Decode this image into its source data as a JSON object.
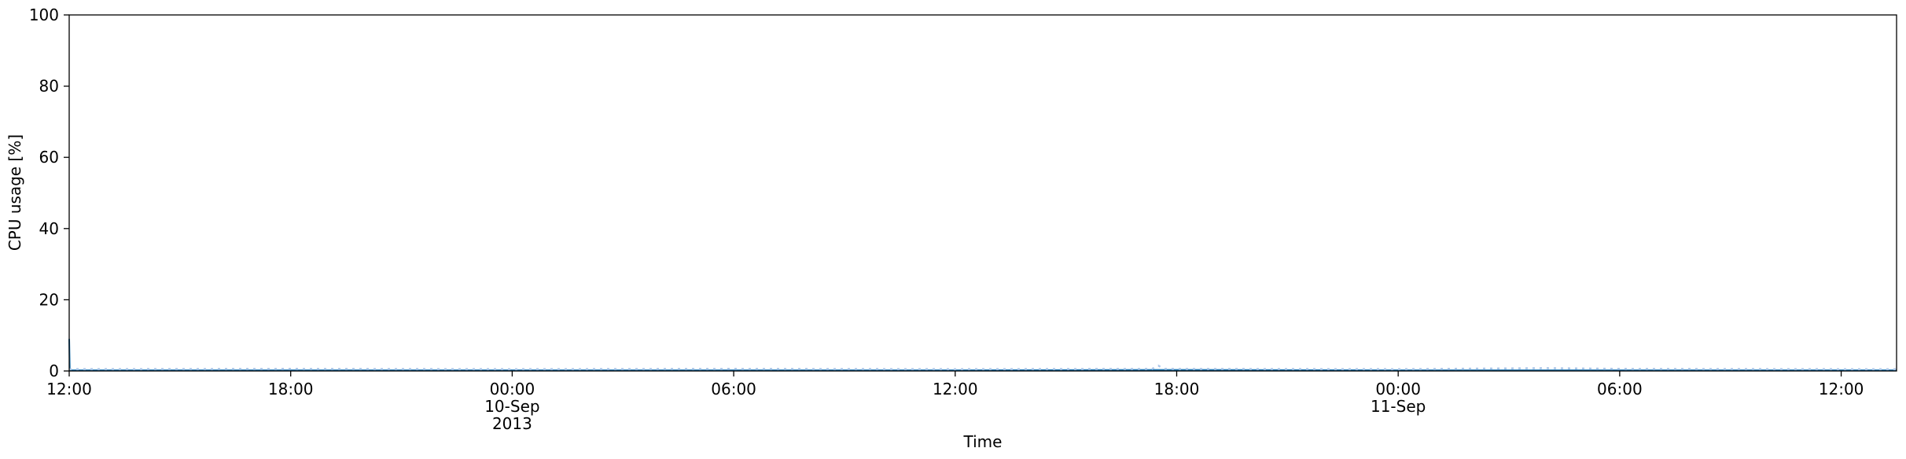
{
  "chart_data": {
    "type": "line",
    "title": "",
    "xlabel": "Time",
    "ylabel": "CPU usage [%]",
    "ylim": [
      0,
      100
    ],
    "xlim": [
      "2013-09-09 12:00",
      "2013-09-11 13:30"
    ],
    "grid": false,
    "y_ticks": [
      0,
      20,
      40,
      60,
      80,
      100
    ],
    "x_ticks": [
      {
        "t": "2013-09-09 12:00",
        "lines": [
          "12:00"
        ]
      },
      {
        "t": "2013-09-09 18:00",
        "lines": [
          "18:00"
        ]
      },
      {
        "t": "2013-09-10 00:00",
        "lines": [
          "00:00",
          "10-Sep",
          "2013"
        ]
      },
      {
        "t": "2013-09-10 06:00",
        "lines": [
          "06:00"
        ]
      },
      {
        "t": "2013-09-10 12:00",
        "lines": [
          "12:00"
        ]
      },
      {
        "t": "2013-09-10 18:00",
        "lines": [
          "18:00"
        ]
      },
      {
        "t": "2013-09-11 00:00",
        "lines": [
          "00:00",
          "11-Sep"
        ]
      },
      {
        "t": "2013-09-11 06:00",
        "lines": [
          "06:00"
        ]
      },
      {
        "t": "2013-09-11 12:00",
        "lines": [
          "12:00"
        ]
      }
    ],
    "series": [
      {
        "color": "#1f77b4",
        "style": "solid",
        "x": [
          "2013-09-09 12:00",
          "2013-09-09 12:01",
          "2013-09-10 00:00",
          "2013-09-10 12:00",
          "2013-09-10 17:30",
          "2013-09-11 00:00",
          "2013-09-11 13:30"
        ],
        "values": [
          9,
          0.2,
          0.2,
          0.2,
          0.3,
          0.2,
          0.2
        ]
      },
      {
        "color": "#aec7e8",
        "style": "dotted",
        "x": [
          "2013-09-09 12:00",
          "2013-09-09 18:00",
          "2013-09-10 00:00",
          "2013-09-10 06:00",
          "2013-09-10 12:00",
          "2013-09-10 17:20",
          "2013-09-10 17:30",
          "2013-09-10 17:40",
          "2013-09-11 00:00",
          "2013-09-11 04:00",
          "2013-09-11 06:00",
          "2013-09-11 12:00",
          "2013-09-11 13:30"
        ],
        "values": [
          0.5,
          0.6,
          0.5,
          0.6,
          0.5,
          0.6,
          1.5,
          0.6,
          0.5,
          0.8,
          0.6,
          0.5,
          0.5
        ]
      }
    ]
  }
}
